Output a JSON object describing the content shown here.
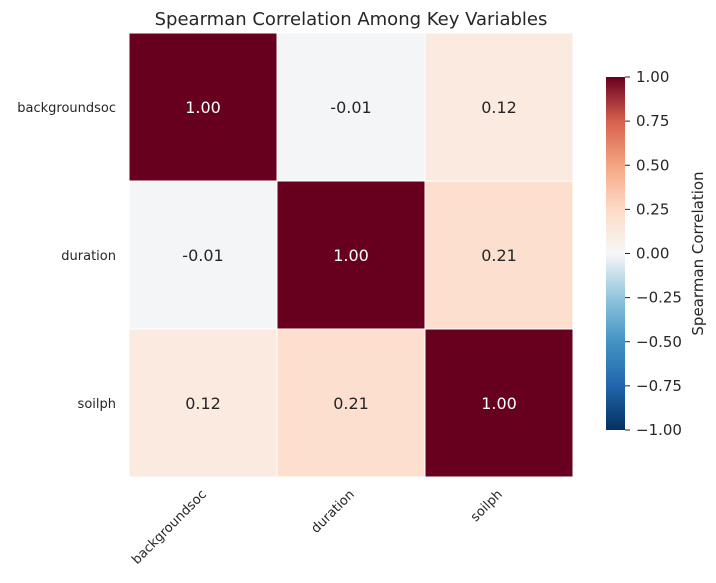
{
  "chart_data": {
    "type": "heatmap",
    "title": "Spearman Correlation Among Key Variables",
    "x_categories": [
      "backgroundsoc",
      "duration",
      "soilph"
    ],
    "y_categories": [
      "backgroundsoc",
      "duration",
      "soilph"
    ],
    "values": [
      [
        1.0,
        -0.01,
        0.12
      ],
      [
        -0.01,
        1.0,
        0.21
      ],
      [
        0.12,
        0.21,
        1.0
      ]
    ],
    "value_format": "2 decimals",
    "colormap": "RdBu_r",
    "vmin": -1.0,
    "vmax": 1.0,
    "colorbar": {
      "label": "Spearman Correlation",
      "ticks": [
        1.0,
        0.75,
        0.5,
        0.25,
        0.0,
        -0.25,
        -0.5,
        -0.75,
        -1.0
      ],
      "tick_labels": [
        "1.00",
        "0.75",
        "0.50",
        "0.25",
        "0.00",
        "−0.25",
        "−0.50",
        "−0.75",
        "−1.00"
      ]
    },
    "colors": {
      "max": "#67001f",
      "zero": "#f7f7f7",
      "min": "#053061",
      "cell_border": "#ffffff",
      "text_dark": "#262626",
      "text_light": "#ffffff"
    }
  }
}
